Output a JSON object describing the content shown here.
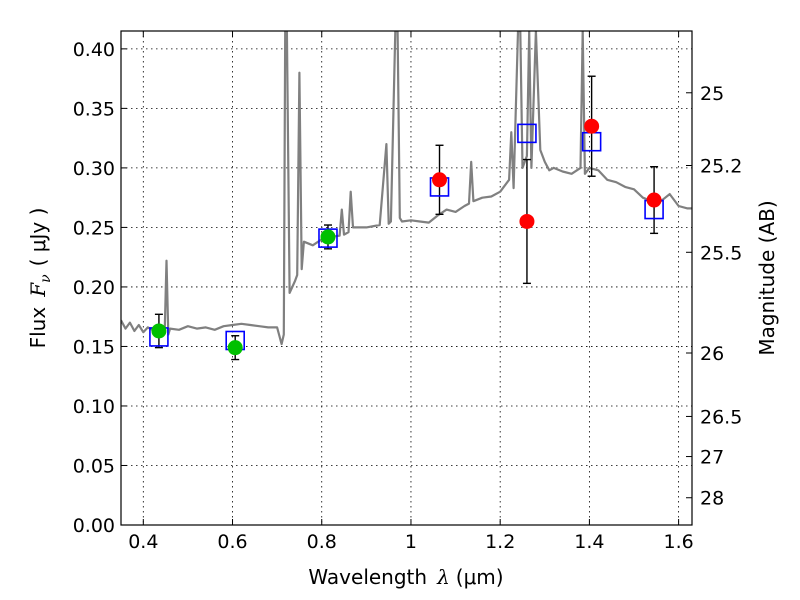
{
  "chart_data": {
    "type": "scatter",
    "title": "",
    "xlabel": "Wavelength",
    "xlabel_symbol": "λ",
    "xlabel_unit": "(μm)",
    "ylabel": "Flux",
    "ylabel_symbol": "F",
    "ylabel_subscript": "ν",
    "ylabel_unit": "( μJy )",
    "ylabel_right": "Magnitude (AB)",
    "xlim": [
      0.35,
      1.63
    ],
    "ylim": [
      0.0,
      0.415
    ],
    "grid": true,
    "x_ticks": [
      0.4,
      0.6,
      0.8,
      1.0,
      1.2,
      1.4,
      1.6
    ],
    "x_tick_labels": [
      "0.4",
      "0.6",
      "0.8",
      "1",
      "1.2",
      "1.4",
      "1.6"
    ],
    "y_ticks": [
      0.0,
      0.05,
      0.1,
      0.15,
      0.2,
      0.25,
      0.3,
      0.35,
      0.4
    ],
    "y_tick_labels": [
      "0.00",
      "0.05",
      "0.10",
      "0.15",
      "0.20",
      "0.25",
      "0.30",
      "0.35",
      "0.40"
    ],
    "right_ticks": [
      {
        "label": "25",
        "flux": 0.3631
      },
      {
        "label": "25.2",
        "flux": 0.302
      },
      {
        "label": "25.5",
        "flux": 0.2291
      },
      {
        "label": "26",
        "flux": 0.1445
      },
      {
        "label": "26.5",
        "flux": 0.0912
      },
      {
        "label": "27",
        "flux": 0.0575
      },
      {
        "label": "28",
        "flux": 0.0229
      }
    ],
    "colors": {
      "model": "#808080",
      "green_points": "#00c000",
      "red_points": "#ff0000",
      "model_bands": "#0000ff",
      "errorbars": "#000000"
    },
    "series": [
      {
        "name": "model spectrum",
        "kind": "line",
        "x": [
          0.35,
          0.36,
          0.37,
          0.38,
          0.39,
          0.4,
          0.41,
          0.42,
          0.43,
          0.44,
          0.448,
          0.452,
          0.456,
          0.46,
          0.48,
          0.5,
          0.52,
          0.54,
          0.56,
          0.58,
          0.6,
          0.62,
          0.64,
          0.66,
          0.68,
          0.7,
          0.71,
          0.715,
          0.718,
          0.722,
          0.728,
          0.74,
          0.745,
          0.75,
          0.755,
          0.76,
          0.78,
          0.8,
          0.82,
          0.84,
          0.845,
          0.85,
          0.86,
          0.865,
          0.87,
          0.9,
          0.93,
          0.945,
          0.95,
          0.955,
          0.965,
          0.97,
          0.975,
          0.98,
          1.0,
          1.02,
          1.04,
          1.06,
          1.08,
          1.1,
          1.12,
          1.13,
          1.135,
          1.14,
          1.16,
          1.18,
          1.2,
          1.22,
          1.225,
          1.23,
          1.24,
          1.245,
          1.25,
          1.26,
          1.265,
          1.27,
          1.28,
          1.29,
          1.3,
          1.31,
          1.32,
          1.34,
          1.36,
          1.38,
          1.385,
          1.39,
          1.4,
          1.42,
          1.44,
          1.46,
          1.48,
          1.5,
          1.52,
          1.54,
          1.56,
          1.58,
          1.6,
          1.62,
          1.63
        ],
        "y": [
          0.172,
          0.165,
          0.17,
          0.163,
          0.168,
          0.162,
          0.166,
          0.164,
          0.163,
          0.16,
          0.162,
          0.222,
          0.16,
          0.165,
          0.164,
          0.167,
          0.165,
          0.166,
          0.164,
          0.167,
          0.168,
          0.169,
          0.168,
          0.167,
          0.166,
          0.166,
          0.152,
          0.16,
          0.415,
          0.415,
          0.195,
          0.205,
          0.21,
          0.38,
          0.215,
          0.238,
          0.235,
          0.24,
          0.242,
          0.243,
          0.265,
          0.244,
          0.246,
          0.28,
          0.25,
          0.25,
          0.252,
          0.32,
          0.253,
          0.255,
          0.415,
          0.415,
          0.258,
          0.255,
          0.256,
          0.255,
          0.254,
          0.26,
          0.265,
          0.263,
          0.268,
          0.27,
          0.305,
          0.272,
          0.275,
          0.276,
          0.28,
          0.29,
          0.33,
          0.283,
          0.415,
          0.415,
          0.3,
          0.31,
          0.415,
          0.3,
          0.415,
          0.315,
          0.305,
          0.298,
          0.3,
          0.297,
          0.295,
          0.3,
          0.415,
          0.295,
          0.3,
          0.298,
          0.29,
          0.288,
          0.284,
          0.282,
          0.275,
          0.272,
          0.272,
          0.278,
          0.268,
          0.266,
          0.266
        ]
      },
      {
        "name": "model band fluxes",
        "kind": "open-square",
        "x": [
          0.435,
          0.606,
          0.814,
          1.064,
          1.26,
          1.405,
          1.545
        ],
        "y": [
          0.158,
          0.155,
          0.241,
          0.284,
          0.329,
          0.322,
          0.265
        ]
      },
      {
        "name": "observed (optical)",
        "kind": "filled-circle",
        "x": [
          0.435,
          0.606,
          0.814
        ],
        "y": [
          0.163,
          0.149,
          0.242
        ],
        "err": [
          0.014,
          0.01,
          0.01
        ]
      },
      {
        "name": "observed (near-IR)",
        "kind": "filled-circle",
        "x": [
          1.064,
          1.26,
          1.405,
          1.545
        ],
        "y": [
          0.29,
          0.255,
          0.335,
          0.273
        ],
        "err": [
          0.029,
          0.052,
          0.042,
          0.028
        ]
      }
    ]
  }
}
